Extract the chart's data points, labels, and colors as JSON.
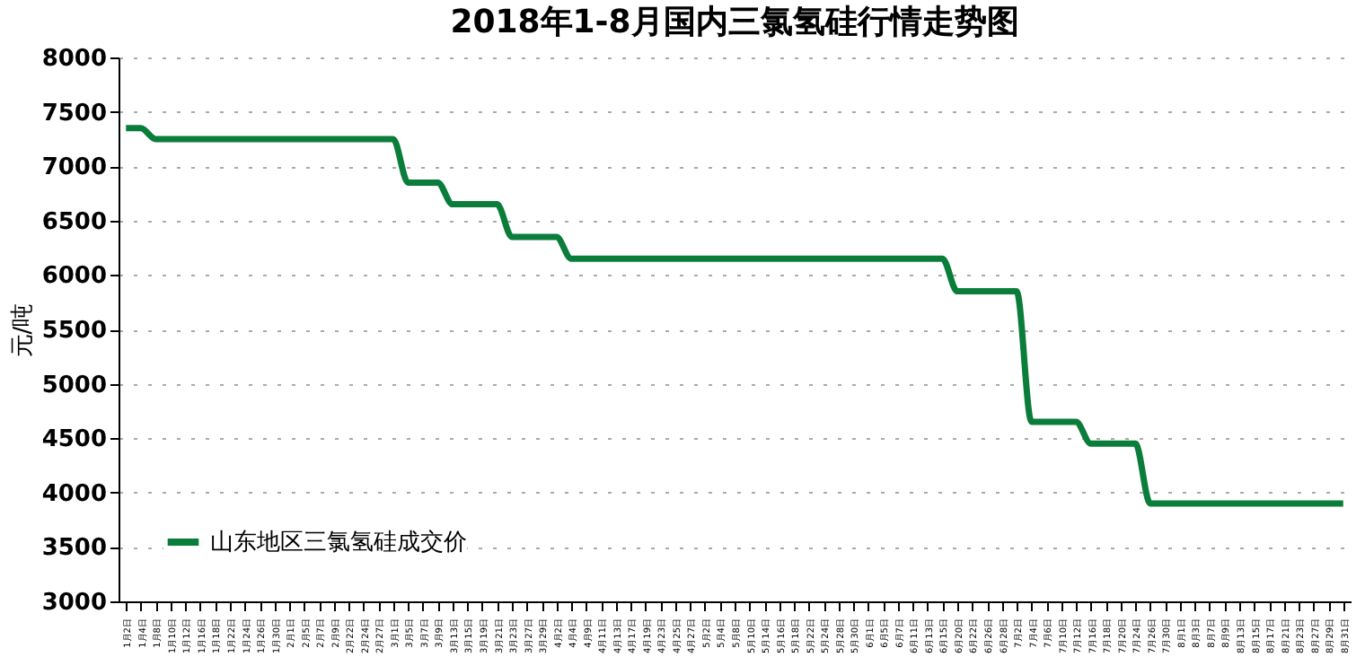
{
  "chart_data": {
    "type": "line",
    "title": "2018年1-8月国内三氯氢硅行情走势图",
    "ylabel": "元/吨",
    "categories": [
      "1月2日",
      "1月4日",
      "1月8日",
      "1月10日",
      "1月12日",
      "1月16日",
      "1月18日",
      "1月22日",
      "1月24日",
      "1月26日",
      "1月30日",
      "2月1日",
      "2月5日",
      "2月7日",
      "2月9日",
      "2月22日",
      "2月24日",
      "2月27日",
      "3月1日",
      "3月5日",
      "3月7日",
      "3月9日",
      "3月13日",
      "3月15日",
      "3月19日",
      "3月21日",
      "3月23日",
      "3月27日",
      "3月29日",
      "4月2日",
      "4月4日",
      "4月9日",
      "4月11日",
      "4月13日",
      "4月17日",
      "4月19日",
      "4月23日",
      "4月25日",
      "4月27日",
      "5月2日",
      "5月4日",
      "5月8日",
      "5月10日",
      "5月14日",
      "5月16日",
      "5月18日",
      "5月22日",
      "5月24日",
      "5月28日",
      "5月30日",
      "6月1日",
      "6月5日",
      "6月7日",
      "6月11日",
      "6月13日",
      "6月15日",
      "6月20日",
      "6月22日",
      "6月26日",
      "6月28日",
      "7月2日",
      "7月4日",
      "7月6日",
      "7月10日",
      "7月12日",
      "7月16日",
      "7月18日",
      "7月20日",
      "7月24日",
      "7月26日",
      "7月30日",
      "8月1日",
      "8月3日",
      "8月7日",
      "8月9日",
      "8月13日",
      "8月15日",
      "8月17日",
      "8月21日",
      "8月23日",
      "8月27日",
      "8月29日",
      "8月31日"
    ],
    "series": [
      {
        "name": "山东地区三氯氢硅成交价",
        "color": "#0a7d3a",
        "values": [
          7350,
          7350,
          7250,
          7250,
          7250,
          7250,
          7250,
          7250,
          7250,
          7250,
          7250,
          7250,
          7250,
          7250,
          7250,
          7250,
          7250,
          7250,
          7250,
          6850,
          6850,
          6850,
          6650,
          6650,
          6650,
          6650,
          6350,
          6350,
          6350,
          6350,
          6150,
          6150,
          6150,
          6150,
          6150,
          6150,
          6150,
          6150,
          6150,
          6150,
          6150,
          6150,
          6150,
          6150,
          6150,
          6150,
          6150,
          6150,
          6150,
          6150,
          6150,
          6150,
          6150,
          6150,
          6150,
          6150,
          5850,
          5850,
          5850,
          5850,
          5850,
          4650,
          4650,
          4650,
          4650,
          4450,
          4450,
          4450,
          4450,
          3900,
          3900,
          3900,
          3900,
          3900,
          3900,
          3900,
          3900,
          3900,
          3900,
          3900,
          3900,
          3900,
          3900
        ]
      }
    ],
    "ylim": [
      3000,
      8000
    ],
    "yticks": [
      3000,
      3500,
      4000,
      4500,
      5000,
      5500,
      6000,
      6500,
      7000,
      7500,
      8000
    ],
    "grid": "y",
    "legend": "bottom left",
    "marker": "none",
    "line_style": "solid"
  }
}
